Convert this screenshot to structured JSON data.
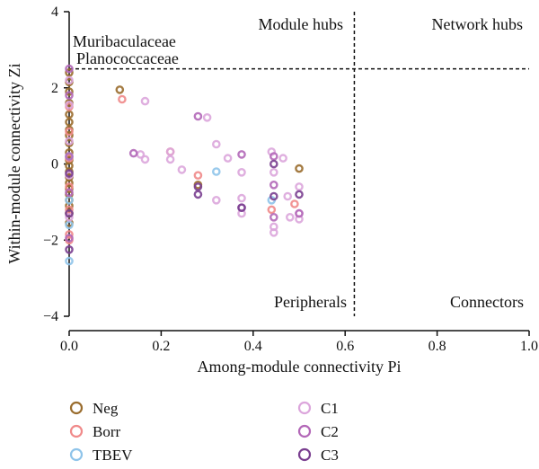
{
  "chart_data": {
    "type": "scatter",
    "xlabel": "Among-module connectivity Pi",
    "ylabel": "Within-module connectivity Zi",
    "xlim": [
      0,
      1.0
    ],
    "ylim": [
      -4,
      4
    ],
    "x_ticks": [
      "0.0",
      "0.2",
      "0.4",
      "0.6",
      "0.8",
      "1.0"
    ],
    "y_ticks": [
      "−4",
      "−2",
      "0",
      "2",
      "4"
    ],
    "x_tick_values": [
      0,
      0.2,
      0.4,
      0.6,
      0.8,
      1.0
    ],
    "y_tick_values": [
      -4,
      -2,
      0,
      2,
      4
    ],
    "thresholds": {
      "pi": 0.62,
      "zi": 2.5
    },
    "quadrant_labels": {
      "top_left": "Module hubs",
      "top_right": "Network hubs",
      "bottom_left": "Peripherals",
      "bottom_right": "Connectors"
    },
    "annotations": [
      "Muribaculaceae",
      "Planococcaceae"
    ],
    "series": [
      {
        "name": "Neg",
        "color": "#9a6d2e",
        "points": [
          [
            0,
            2.4
          ],
          [
            0,
            2.15
          ],
          [
            0,
            1.9
          ],
          [
            0,
            1.6
          ],
          [
            0,
            1.3
          ],
          [
            0,
            1.1
          ],
          [
            0,
            0.9
          ],
          [
            0,
            0.75
          ],
          [
            0,
            0.55
          ],
          [
            0,
            0.3
          ],
          [
            0,
            0.1
          ],
          [
            0,
            -0.05
          ],
          [
            0,
            -0.2
          ],
          [
            0,
            -0.35
          ],
          [
            0,
            -0.5
          ],
          [
            0,
            -0.65
          ],
          [
            0,
            -0.8
          ],
          [
            0,
            -0.95
          ],
          [
            0,
            -1.1
          ],
          [
            0,
            -1.3
          ],
          [
            0,
            -1.55
          ],
          [
            0.11,
            1.95
          ],
          [
            0.28,
            -0.55
          ],
          [
            0.5,
            -0.12
          ]
        ]
      },
      {
        "name": "Borr",
        "color": "#f08a8a",
        "points": [
          [
            0,
            1.5
          ],
          [
            0,
            0.85
          ],
          [
            0,
            0.15
          ],
          [
            0,
            -0.6
          ],
          [
            0,
            -1.2
          ],
          [
            0,
            -1.85
          ],
          [
            0,
            -2.0
          ],
          [
            0.115,
            1.7
          ],
          [
            0.22,
            0.32
          ],
          [
            0.28,
            -0.3
          ],
          [
            0.44,
            -1.2
          ],
          [
            0.49,
            -1.05
          ]
        ]
      },
      {
        "name": "TBEV",
        "color": "#8fc4ea",
        "points": [
          [
            0,
            -2.55
          ],
          [
            0,
            -1.6
          ],
          [
            0,
            -0.95
          ],
          [
            0,
            0.2
          ],
          [
            0.32,
            -0.2
          ],
          [
            0.44,
            -0.95
          ]
        ]
      },
      {
        "name": "C1",
        "color": "#dca6dc",
        "points": [
          [
            0,
            2.2
          ],
          [
            0,
            1.55
          ],
          [
            0,
            0.6
          ],
          [
            0,
            -0.3
          ],
          [
            0,
            -1.4
          ],
          [
            0.165,
            1.65
          ],
          [
            0.155,
            0.25
          ],
          [
            0.165,
            0.12
          ],
          [
            0.22,
            0.12
          ],
          [
            0.22,
            0.32
          ],
          [
            0.245,
            -0.15
          ],
          [
            0.3,
            1.22
          ],
          [
            0.32,
            0.52
          ],
          [
            0.32,
            -0.95
          ],
          [
            0.345,
            0.15
          ],
          [
            0.375,
            -0.22
          ],
          [
            0.375,
            -0.9
          ],
          [
            0.375,
            -1.3
          ],
          [
            0.44,
            0.32
          ],
          [
            0.445,
            -0.22
          ],
          [
            0.445,
            -1.65
          ],
          [
            0.445,
            -1.8
          ],
          [
            0.465,
            0.15
          ],
          [
            0.475,
            -0.85
          ],
          [
            0.48,
            -1.4
          ],
          [
            0.5,
            -1.3
          ],
          [
            0.5,
            -1.45
          ],
          [
            0.5,
            -0.6
          ]
        ]
      },
      {
        "name": "C2",
        "color": "#b368b8",
        "points": [
          [
            0,
            2.5
          ],
          [
            0,
            1.8
          ],
          [
            0,
            0.2
          ],
          [
            0,
            -0.75
          ],
          [
            0,
            -1.95
          ],
          [
            0.14,
            0.28
          ],
          [
            0.28,
            1.25
          ],
          [
            0.375,
            0.25
          ],
          [
            0.375,
            -1.15
          ],
          [
            0.445,
            0.2
          ],
          [
            0.445,
            -0.55
          ],
          [
            0.445,
            -1.4
          ],
          [
            0.5,
            -1.3
          ]
        ]
      },
      {
        "name": "C3",
        "color": "#7a3f90",
        "points": [
          [
            0,
            -2.25
          ],
          [
            0,
            -1.3
          ],
          [
            0,
            -0.25
          ],
          [
            0.28,
            -0.8
          ],
          [
            0.28,
            -0.6
          ],
          [
            0.375,
            -1.15
          ],
          [
            0.445,
            0.0
          ],
          [
            0.445,
            -0.85
          ],
          [
            0.5,
            -0.8
          ]
        ]
      }
    ],
    "legend": {
      "placement": "bottom",
      "columns": 2
    },
    "grid": false
  }
}
